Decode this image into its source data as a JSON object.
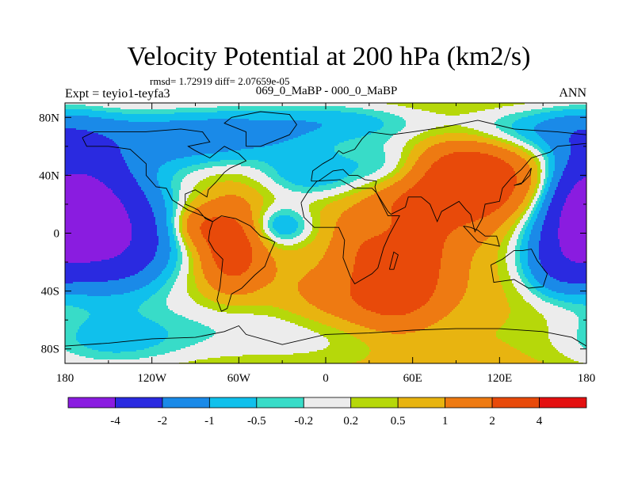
{
  "chart_data": {
    "type": "heatmap",
    "title": "Velocity Potential at 200 hPa (km2/s)",
    "subtitle_stats": "rmsd= 1.72919 diff= 2.07659e-05",
    "left_label": "Expt = teyio1-teyfa3",
    "center_label": "069_0_MaBP - 000_0_MaBP",
    "right_label": "ANN",
    "x_axis": {
      "range": [
        -180,
        180
      ],
      "ticks": [
        -180,
        -120,
        -60,
        0,
        60,
        120,
        180
      ],
      "tick_labels": [
        "180",
        "120W",
        "60W",
        "0",
        "60E",
        "120E",
        "180"
      ]
    },
    "y_axis": {
      "range": [
        -90,
        90
      ],
      "ticks": [
        80,
        40,
        0,
        -40,
        -80
      ],
      "tick_labels": [
        "80N",
        "40N",
        "0",
        "40S",
        "80S"
      ]
    },
    "colorbar": {
      "labels": [
        "-4",
        "-2",
        "-1",
        "-0.5",
        "-0.2",
        "0.2",
        "0.5",
        "1",
        "2",
        "4"
      ],
      "colors": [
        "#8a1ce0",
        "#2a2ae0",
        "#1a8ae8",
        "#10c0ec",
        "#38dcc8",
        "#ececec",
        "#b6d80a",
        "#e8b410",
        "#ee7a12",
        "#e84a0a",
        "#e41010"
      ]
    },
    "field": {
      "description": "Anomaly field approximated by Gaussian centers; value units km2/s",
      "background": 0.8,
      "centers": [
        {
          "lon": -160,
          "lat": 10,
          "amp": -4.6,
          "slon": 35,
          "slat": 30
        },
        {
          "lon": -135,
          "lat": -15,
          "amp": -1.5,
          "slon": 25,
          "slat": 20
        },
        {
          "lon": -178,
          "lat": 50,
          "amp": -1.0,
          "slon": 25,
          "slat": 25
        },
        {
          "lon": -100,
          "lat": 65,
          "amp": -1.6,
          "slon": 40,
          "slat": 15
        },
        {
          "lon": -40,
          "lat": 70,
          "amp": -1.3,
          "slon": 45,
          "slat": 15
        },
        {
          "lon": 20,
          "lat": 78,
          "amp": -1.0,
          "slon": 40,
          "slat": 10
        },
        {
          "lon": -10,
          "lat": 40,
          "amp": -1.5,
          "slon": 25,
          "slat": 12
        },
        {
          "lon": 45,
          "lat": 45,
          "amp": -1.4,
          "slon": 22,
          "slat": 14
        },
        {
          "lon": -30,
          "lat": 5,
          "amp": -1.7,
          "slon": 15,
          "slat": 10
        },
        {
          "lon": 40,
          "lat": 5,
          "amp": -1.2,
          "slon": 12,
          "slat": 10
        },
        {
          "lon": 175,
          "lat": 10,
          "amp": -3.2,
          "slon": 25,
          "slat": 25
        },
        {
          "lon": 160,
          "lat": -25,
          "amp": -1.4,
          "slon": 18,
          "slat": 15
        },
        {
          "lon": 150,
          "lat": 72,
          "amp": -1.6,
          "slon": 50,
          "slat": 12
        },
        {
          "lon": -20,
          "lat": -65,
          "amp": -1.1,
          "slon": 80,
          "slat": 18
        },
        {
          "lon": -150,
          "lat": -75,
          "amp": -1.2,
          "slon": 40,
          "slat": 15
        },
        {
          "lon": 100,
          "lat": 35,
          "amp": 3.0,
          "slon": 30,
          "slat": 20
        },
        {
          "lon": 50,
          "lat": -15,
          "amp": 2.8,
          "slon": 22,
          "slat": 30
        },
        {
          "lon": -65,
          "lat": -10,
          "amp": 2.2,
          "slon": 15,
          "slat": 20
        },
        {
          "lon": -90,
          "lat": 5,
          "amp": 1.3,
          "slon": 12,
          "slat": 10
        },
        {
          "lon": 150,
          "lat": 25,
          "amp": 1.2,
          "slon": 15,
          "slat": 20
        },
        {
          "lon": 20,
          "lat": -50,
          "amp": 1.2,
          "slon": 40,
          "slat": 15
        }
      ]
    }
  }
}
